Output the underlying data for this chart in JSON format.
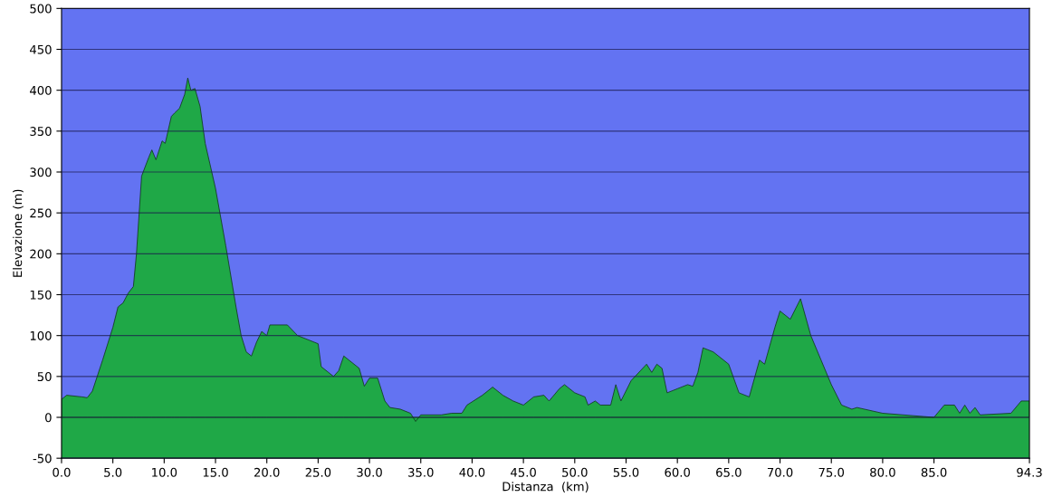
{
  "chart_data": {
    "type": "area",
    "xlabel": "Distanza  (km)",
    "ylabel": "Elevazione (m)",
    "x": [
      0,
      0.5,
      2,
      2.5,
      3,
      4,
      5,
      5.5,
      6,
      6.5,
      7,
      7.3,
      7.8,
      8.5,
      8.8,
      9.2,
      9.8,
      10.1,
      10.7,
      11,
      11.5,
      12,
      12.3,
      12.6,
      13,
      13.5,
      14,
      15,
      16,
      17,
      17.5,
      18,
      18.5,
      19,
      19.5,
      20,
      20.3,
      22,
      23,
      24,
      25,
      25.3,
      26,
      26.5,
      27,
      27.5,
      28,
      29,
      29.5,
      30,
      30.8,
      31.5,
      32,
      33,
      34,
      34.5,
      35,
      37,
      38,
      39,
      39.5,
      41,
      42,
      43,
      44,
      45,
      46,
      47,
      47.5,
      48.5,
      49,
      50,
      51,
      51.3,
      52,
      52.5,
      53.5,
      54,
      54.5,
      55.5,
      57,
      57.5,
      58,
      58.5,
      59,
      60,
      61,
      61.5,
      62,
      62.5,
      63.5,
      65,
      66,
      67,
      68,
      68.5,
      69.5,
      70,
      71,
      72,
      73,
      74,
      75,
      76,
      77,
      77.5,
      80,
      83,
      85,
      86,
      87,
      87.5,
      88,
      88.5,
      89,
      89.5,
      92.5,
      93.5,
      94.3
    ],
    "series": [
      {
        "color": "#1fa847",
        "values": [
          22,
          27,
          25,
          24,
          32,
          70,
          110,
          135,
          140,
          152,
          160,
          200,
          295,
          318,
          327,
          315,
          338,
          335,
          368,
          372,
          378,
          395,
          415,
          400,
          402,
          380,
          335,
          280,
          210,
          135,
          100,
          80,
          75,
          92,
          105,
          100,
          113,
          113,
          100,
          95,
          90,
          62,
          55,
          50,
          57,
          75,
          70,
          60,
          38,
          48,
          48,
          20,
          12,
          10,
          5,
          -5,
          3,
          3,
          5,
          5,
          15,
          27,
          37,
          27,
          20,
          15,
          25,
          27,
          20,
          35,
          40,
          30,
          25,
          15,
          20,
          15,
          15,
          40,
          20,
          45,
          65,
          55,
          65,
          60,
          30,
          35,
          40,
          38,
          55,
          85,
          80,
          65,
          30,
          25,
          70,
          65,
          110,
          130,
          120,
          145,
          100,
          70,
          40,
          15,
          10,
          12,
          5,
          2,
          0,
          15,
          15,
          5,
          15,
          5,
          12,
          3,
          5,
          20,
          20
        ]
      }
    ],
    "xlim": [
      0,
      94.3
    ],
    "ylim": [
      -50,
      500
    ],
    "xticks": [
      {
        "value": 0,
        "label": "0.0"
      },
      {
        "value": 5,
        "label": "5.0"
      },
      {
        "value": 10,
        "label": "10.0"
      },
      {
        "value": 15,
        "label": "15.0"
      },
      {
        "value": 20,
        "label": "20.0"
      },
      {
        "value": 25,
        "label": "25.0"
      },
      {
        "value": 30,
        "label": "30.0"
      },
      {
        "value": 35,
        "label": "35.0"
      },
      {
        "value": 40,
        "label": "40.0"
      },
      {
        "value": 45,
        "label": "45.0"
      },
      {
        "value": 50,
        "label": "50.0"
      },
      {
        "value": 55,
        "label": "55.0"
      },
      {
        "value": 60,
        "label": "60.0"
      },
      {
        "value": 65,
        "label": "65.0"
      },
      {
        "value": 70,
        "label": "70.0"
      },
      {
        "value": 75,
        "label": "75.0"
      },
      {
        "value": 80,
        "label": "80.0"
      },
      {
        "value": 85,
        "label": "85.0"
      },
      94.3
    ],
    "yticks": [
      -50,
      0,
      50,
      100,
      150,
      200,
      250,
      300,
      350,
      400,
      450,
      500
    ],
    "bands": [
      {
        "axis": "y",
        "from": -50,
        "to": 0,
        "color": "#1fa847"
      }
    ],
    "grid": "y"
  }
}
